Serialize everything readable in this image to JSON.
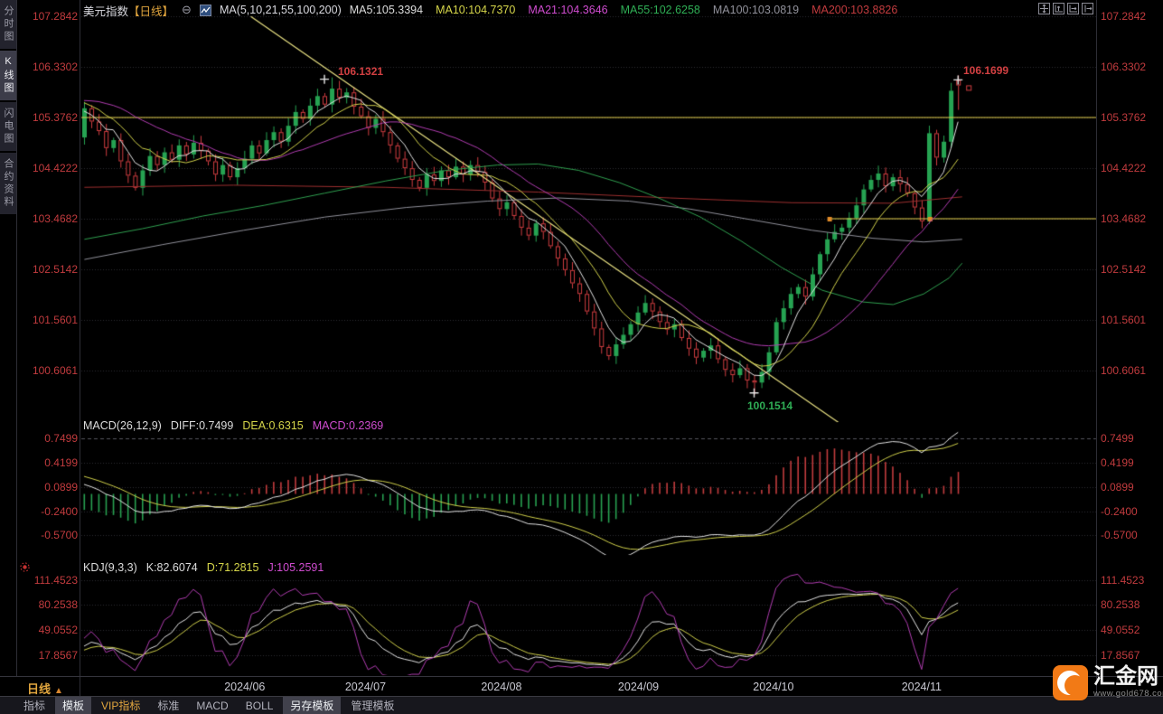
{
  "header": {
    "symbol": "美元指数",
    "period_label": "【日线】",
    "collapse_glyph": "⊖",
    "ma_summary": "MA(5,10,21,55,100,200)",
    "ma_values": [
      {
        "label": "MA5:105.3394",
        "color": "#dcdcdc"
      },
      {
        "label": "MA10:104.7370",
        "color": "#d6d64a"
      },
      {
        "label": "MA21:104.3646",
        "color": "#cf4ccf"
      },
      {
        "label": "MA55:102.6258",
        "color": "#2fae55"
      },
      {
        "label": "MA100:103.0819",
        "color": "#90909a"
      },
      {
        "label": "MA200:103.8826",
        "color": "#c13b3e"
      }
    ],
    "window_icons": [
      "pan-icon",
      "scale-y-axis-icon",
      "scale-x-axis-icon",
      "jump-latest-icon"
    ]
  },
  "sidebar": {
    "items": [
      {
        "label": "分时图",
        "active": false
      },
      {
        "label": "K线图",
        "active": true
      },
      {
        "label": "闪电图",
        "active": false
      },
      {
        "label": "合约资料",
        "active": false
      }
    ]
  },
  "price_axis_labels": [
    "107.2842",
    "106.3302",
    "105.3762",
    "104.4222",
    "103.4682",
    "102.5142",
    "101.5601",
    "100.6061"
  ],
  "macd_panel": {
    "title": "MACD(26,12,9)",
    "diff_label": "DIFF:0.7499",
    "dea_label": "DEA:0.6315",
    "macd_label": "MACD:0.2369",
    "axis_labels": [
      "0.7499",
      "0.4199",
      "0.0899",
      "-0.2400",
      "-0.5700"
    ]
  },
  "kdj_panel": {
    "title": "KDJ(9,3,3)",
    "k_label": "K:82.6074",
    "d_label": "D:71.2815",
    "j_label": "J:105.2591",
    "axis_labels": [
      "111.4523",
      "80.2538",
      "49.0552",
      "17.8567"
    ]
  },
  "annotations": {
    "first_high": "106.1321",
    "last_high": "106.1699",
    "low": "100.1514"
  },
  "xaxis": {
    "period_label": "日线",
    "period_arrow": "▲"
  },
  "bottom_tabs": [
    {
      "label": "指标"
    },
    {
      "label": "模板",
      "active": true
    },
    {
      "label": "VIP指标",
      "vip": true
    },
    {
      "label": "标准"
    },
    {
      "label": "MACD"
    },
    {
      "label": "BOLL"
    },
    {
      "label": "另存模板",
      "active": true
    },
    {
      "label": "管理模板"
    }
  ],
  "logo": {
    "site_name": "汇金网",
    "site_url": "www.gold678.com"
  },
  "chart_data": {
    "type": "candlestick",
    "title": "美元指数 日线 (US Dollar Index, daily)",
    "ylim": [
      99.9,
      107.45
    ],
    "price_gridlines": [
      107.2842,
      106.3302,
      105.3762,
      104.4222,
      103.4682,
      102.5142,
      101.5601,
      100.6061
    ],
    "month_ticks": [
      {
        "label": "2024/06",
        "fx": 0.161
      },
      {
        "label": "2024/07",
        "fx": 0.28
      },
      {
        "label": "2024/08",
        "fx": 0.414
      },
      {
        "label": "2024/09",
        "fx": 0.549
      },
      {
        "label": "2024/10",
        "fx": 0.682
      },
      {
        "label": "2024/11",
        "fx": 0.828
      }
    ],
    "closes": [
      105.55,
      105.3,
      105.12,
      104.8,
      104.95,
      104.55,
      104.28,
      104.05,
      104.38,
      104.65,
      104.48,
      104.72,
      104.58,
      104.85,
      104.68,
      104.9,
      104.75,
      104.55,
      104.3,
      104.48,
      104.25,
      104.42,
      104.6,
      104.85,
      104.7,
      104.95,
      105.1,
      104.92,
      105.22,
      105.48,
      105.35,
      105.6,
      105.78,
      105.62,
      105.92,
      105.75,
      105.85,
      105.58,
      105.4,
      105.18,
      105.35,
      105.1,
      104.85,
      104.6,
      104.42,
      104.2,
      104.05,
      104.3,
      104.18,
      104.38,
      104.25,
      104.45,
      104.3,
      104.48,
      104.35,
      104.15,
      103.85,
      103.65,
      103.78,
      103.52,
      103.3,
      103.15,
      103.38,
      103.22,
      102.95,
      102.72,
      102.5,
      102.25,
      102.05,
      101.72,
      101.4,
      101.05,
      100.88,
      101.1,
      101.28,
      101.48,
      101.7,
      101.88,
      101.72,
      101.52,
      101.38,
      101.48,
      101.22,
      101.02,
      100.85,
      100.98,
      101.08,
      100.82,
      100.62,
      100.52,
      100.65,
      100.42,
      100.38,
      100.58,
      100.95,
      101.52,
      101.78,
      102.05,
      102.18,
      102.0,
      102.42,
      102.8,
      103.08,
      103.22,
      103.3,
      103.48,
      103.72,
      104.02,
      104.2,
      104.32,
      104.08,
      104.25,
      104.12,
      103.95,
      103.68,
      103.42,
      105.08,
      104.62,
      104.92,
      105.88,
      105.98
    ],
    "pre_history_estimate": [
      104.0,
      104.05,
      104.12,
      104.08,
      104.2,
      104.3,
      104.28,
      104.42,
      104.55,
      104.5,
      104.65,
      104.78,
      104.72,
      104.88,
      105.0,
      104.95,
      105.1,
      105.22,
      105.18,
      105.32,
      105.45,
      105.4,
      105.55,
      105.68,
      105.62,
      105.78,
      105.9,
      105.85,
      106.0,
      105.95,
      105.88,
      105.92,
      105.8,
      105.85,
      105.72,
      105.78,
      105.65,
      105.7,
      105.58,
      105.0
    ],
    "overrides": {
      "0": {
        "o": 105.0
      },
      "34": {
        "h": 106.1321
      },
      "92": {
        "l": 100.1514
      },
      "116": {
        "l": 103.37
      },
      "120": {
        "o": 106.08,
        "h": 106.1699,
        "l": 105.52
      }
    },
    "extremes": {
      "first_high": {
        "index": 34,
        "value": 106.1321
      },
      "last_high": {
        "index": 120,
        "value": 106.1699
      },
      "low": {
        "index": 92,
        "value": 100.1514
      }
    },
    "hlines": [
      {
        "price": 105.3762,
        "from_fx": 0.0,
        "handles_fx": []
      },
      {
        "price": 103.4682,
        "from_fx": 0.737,
        "handles_fx": [
          0.737,
          0.836
        ]
      }
    ],
    "trendline": {
      "p1": [
        0.167,
        107.28
      ],
      "p2": [
        0.752,
        99.55
      ]
    },
    "ma_overlays": {
      "ma55": [
        [
          0.003,
          103.08
        ],
        [
          0.06,
          103.28
        ],
        [
          0.12,
          103.52
        ],
        [
          0.18,
          103.72
        ],
        [
          0.24,
          103.95
        ],
        [
          0.3,
          104.18
        ],
        [
          0.36,
          104.38
        ],
        [
          0.41,
          104.48
        ],
        [
          0.45,
          104.5
        ],
        [
          0.49,
          104.38
        ],
        [
          0.53,
          104.15
        ],
        [
          0.57,
          103.85
        ],
        [
          0.61,
          103.5
        ],
        [
          0.65,
          103.05
        ],
        [
          0.69,
          102.55
        ],
        [
          0.73,
          102.12
        ],
        [
          0.77,
          101.9
        ],
        [
          0.8,
          101.85
        ],
        [
          0.83,
          102.05
        ],
        [
          0.855,
          102.35
        ],
        [
          0.868,
          102.63
        ]
      ],
      "ma100": [
        [
          0.003,
          102.7
        ],
        [
          0.08,
          102.98
        ],
        [
          0.16,
          103.25
        ],
        [
          0.24,
          103.5
        ],
        [
          0.32,
          103.68
        ],
        [
          0.4,
          103.8
        ],
        [
          0.47,
          103.86
        ],
        [
          0.54,
          103.8
        ],
        [
          0.6,
          103.65
        ],
        [
          0.66,
          103.45
        ],
        [
          0.72,
          103.25
        ],
        [
          0.78,
          103.1
        ],
        [
          0.83,
          103.03
        ],
        [
          0.868,
          103.08
        ]
      ],
      "ma200": [
        [
          0.003,
          104.06
        ],
        [
          0.15,
          104.1
        ],
        [
          0.3,
          104.06
        ],
        [
          0.45,
          103.97
        ],
        [
          0.58,
          103.86
        ],
        [
          0.7,
          103.77
        ],
        [
          0.8,
          103.76
        ],
        [
          0.868,
          103.88
        ]
      ]
    },
    "indicators": {
      "macd_params": [
        26,
        12,
        9
      ],
      "kdj_params": [
        9,
        3,
        3
      ]
    },
    "colors": {
      "up": "#26a352",
      "down": "#cf3d40",
      "ma5": "#e2e2e2",
      "ma10": "#cfcf4a",
      "ma21": "#b03cb0",
      "ma55": "#2f9f4f",
      "ma100": "#90909a",
      "ma200": "#9c2f2f",
      "hline": "#e3cf4e",
      "trendline": "#e8e082",
      "grid": "#2c2c32",
      "axis_text": "#c13b3e",
      "macd_pos_bar": "#c23c3e",
      "macd_neg_bar": "#27a050",
      "diff_line": "#e2e2e2",
      "dea_line": "#cfcf4a",
      "k_line": "#e2e2e2",
      "d_line": "#cfcf4a",
      "j_line": "#b03cb0",
      "marker": "#e8e8e8",
      "handle": "#e08a28"
    }
  }
}
